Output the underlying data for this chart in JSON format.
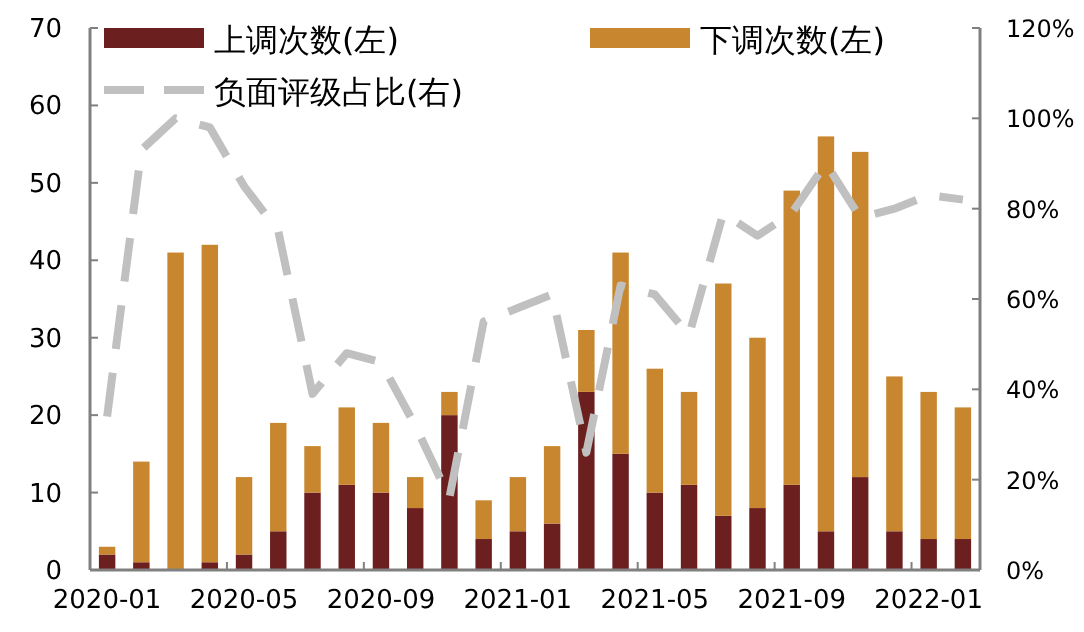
{
  "chart_data": {
    "type": "bar",
    "stacked": true,
    "categories": [
      "2020-01",
      null,
      null,
      null,
      "2020-05",
      null,
      null,
      null,
      "2020-09",
      null,
      null,
      null,
      "2021-01",
      null,
      null,
      null,
      "2021-05",
      null,
      null,
      null,
      "2021-09",
      null,
      null,
      null,
      "2022-01",
      null
    ],
    "series": [
      {
        "name": "上调次数(左)",
        "color": "#6b1f1f",
        "values": [
          2,
          1,
          0,
          1,
          2,
          5,
          10,
          11,
          10,
          8,
          20,
          4,
          5,
          6,
          23,
          15,
          10,
          11,
          7,
          8,
          11,
          5,
          12,
          5,
          4,
          4
        ]
      },
      {
        "name": "下调次数(左)",
        "color": "#c8872e",
        "values": [
          1,
          13,
          41,
          41,
          10,
          14,
          6,
          10,
          9,
          4,
          3,
          5,
          7,
          10,
          8,
          26,
          16,
          12,
          30,
          22,
          38,
          51,
          42,
          20,
          19,
          17
        ]
      },
      {
        "name": "负面评级占比(右)",
        "type": "line",
        "axis": "y2",
        "color": "#c0c0c0",
        "line_style": "dashed",
        "marker": "none",
        "values": [
          34,
          93,
          100,
          98,
          85,
          75,
          39,
          48,
          46,
          32,
          16,
          55,
          58,
          61,
          26,
          63,
          61,
          52,
          79,
          74,
          79,
          90,
          78,
          80,
          83,
          82
        ]
      }
    ],
    "ylim": [
      0,
      70
    ],
    "yticks": [
      0,
      10,
      20,
      30,
      40,
      50,
      60,
      70
    ],
    "y2lim": [
      0,
      120
    ],
    "y2ticks": [
      {
        "value": 0,
        "label": "0%"
      },
      {
        "value": 20,
        "label": "20%"
      },
      {
        "value": 40,
        "label": "40%"
      },
      {
        "value": 60,
        "label": "60%"
      },
      {
        "value": 80,
        "label": "80%"
      },
      {
        "value": 100,
        "label": "100%"
      },
      {
        "value": 120,
        "label": "120%"
      }
    ],
    "grid": false,
    "legend": "top"
  }
}
